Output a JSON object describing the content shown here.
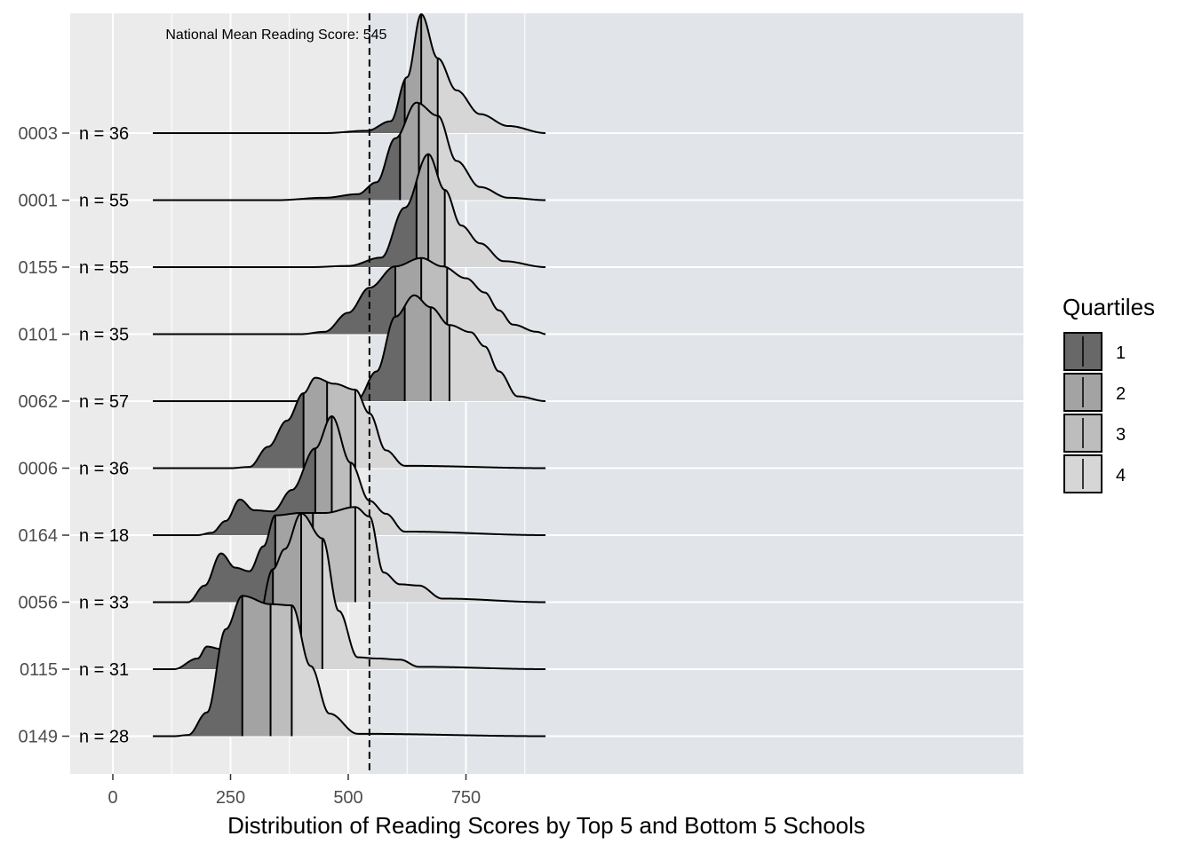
{
  "chart_data": {
    "type": "ridgeline",
    "xlabel": "Distribution of Reading Scores by Top 5 and Bottom 5 Schools",
    "xlim": [
      -90,
      970
    ],
    "x_ticks": [
      0,
      250,
      500,
      750
    ],
    "x_tick_labels": [
      "0",
      "250",
      "500",
      "750"
    ],
    "annotation": "National Mean Reading Score: 545",
    "reference_line": 545,
    "above_mean_shading_color": "#e1e5e9",
    "panel_color": "#ebebeb",
    "legend": {
      "title": "Quartiles",
      "position": "right",
      "items": [
        {
          "label": "1",
          "color": "#686868"
        },
        {
          "label": "2",
          "color": "#a3a3a3"
        },
        {
          "label": "3",
          "color": "#bdbdbd"
        },
        {
          "label": "4",
          "color": "#d6d6d6"
        }
      ]
    },
    "schools": [
      {
        "name": "0003",
        "n_label": "n = 36",
        "q": [
          620,
          655,
          690
        ],
        "density": [
          [
            85,
            0
          ],
          [
            450,
            0
          ],
          [
            540,
            0.02
          ],
          [
            590,
            0.1
          ],
          [
            625,
            0.47
          ],
          [
            655,
            1.0
          ],
          [
            690,
            0.63
          ],
          [
            730,
            0.36
          ],
          [
            780,
            0.16
          ],
          [
            840,
            0.06
          ],
          [
            920,
            0
          ]
        ]
      },
      {
        "name": "0001",
        "n_label": "n = 55",
        "q": [
          610,
          650,
          690
        ],
        "density": [
          [
            85,
            0
          ],
          [
            350,
            0
          ],
          [
            450,
            0.02
          ],
          [
            520,
            0.05
          ],
          [
            560,
            0.15
          ],
          [
            600,
            0.52
          ],
          [
            645,
            0.82
          ],
          [
            690,
            0.71
          ],
          [
            730,
            0.33
          ],
          [
            780,
            0.11
          ],
          [
            840,
            0.02
          ],
          [
            920,
            0
          ]
        ]
      },
      {
        "name": "0155",
        "n_label": "n = 55",
        "q": [
          645,
          670,
          705
        ],
        "density": [
          [
            85,
            0
          ],
          [
            420,
            0
          ],
          [
            500,
            0.01
          ],
          [
            570,
            0.08
          ],
          [
            620,
            0.5
          ],
          [
            670,
            0.95
          ],
          [
            705,
            0.65
          ],
          [
            740,
            0.35
          ],
          [
            780,
            0.2
          ],
          [
            830,
            0.05
          ],
          [
            920,
            0
          ]
        ]
      },
      {
        "name": "0101",
        "n_label": "n = 35",
        "q": [
          600,
          655,
          710
        ],
        "density": [
          [
            85,
            0
          ],
          [
            400,
            0
          ],
          [
            450,
            0.02
          ],
          [
            500,
            0.18
          ],
          [
            545,
            0.39
          ],
          [
            600,
            0.57
          ],
          [
            655,
            0.64
          ],
          [
            700,
            0.57
          ],
          [
            750,
            0.47
          ],
          [
            790,
            0.35
          ],
          [
            820,
            0.2
          ],
          [
            850,
            0.08
          ],
          [
            900,
            0.02
          ],
          [
            920,
            0
          ]
        ]
      },
      {
        "name": "0062",
        "n_label": "n = 57",
        "q": [
          620,
          675,
          715
        ],
        "density": [
          [
            85,
            0
          ],
          [
            480,
            0
          ],
          [
            520,
            0.02
          ],
          [
            560,
            0.25
          ],
          [
            600,
            0.71
          ],
          [
            640,
            0.89
          ],
          [
            675,
            0.79
          ],
          [
            715,
            0.64
          ],
          [
            760,
            0.58
          ],
          [
            790,
            0.46
          ],
          [
            820,
            0.25
          ],
          [
            860,
            0.04
          ],
          [
            920,
            0
          ]
        ]
      },
      {
        "name": "0006",
        "n_label": "n = 36",
        "q": [
          405,
          455,
          515
        ],
        "density": [
          [
            85,
            0
          ],
          [
            250,
            0
          ],
          [
            290,
            0.01
          ],
          [
            330,
            0.18
          ],
          [
            370,
            0.4
          ],
          [
            405,
            0.63
          ],
          [
            430,
            0.76
          ],
          [
            470,
            0.71
          ],
          [
            515,
            0.66
          ],
          [
            545,
            0.46
          ],
          [
            580,
            0.15
          ],
          [
            620,
            0.02
          ],
          [
            920,
            0
          ]
        ]
      },
      {
        "name": "0164",
        "n_label": "n = 18",
        "q": [
          430,
          465,
          505
        ],
        "density": [
          [
            85,
            0
          ],
          [
            180,
            0
          ],
          [
            210,
            0.02
          ],
          [
            240,
            0.12
          ],
          [
            270,
            0.3
          ],
          [
            300,
            0.21
          ],
          [
            340,
            0.2
          ],
          [
            380,
            0.38
          ],
          [
            430,
            0.73
          ],
          [
            465,
            1.0
          ],
          [
            505,
            0.61
          ],
          [
            545,
            0.29
          ],
          [
            580,
            0.18
          ],
          [
            620,
            0.03
          ],
          [
            920,
            0
          ]
        ]
      },
      {
        "name": "0056",
        "n_label": "n = 33",
        "q": [
          345,
          425,
          515
        ],
        "density": [
          [
            85,
            0
          ],
          [
            160,
            0
          ],
          [
            195,
            0.14
          ],
          [
            230,
            0.41
          ],
          [
            260,
            0.29
          ],
          [
            290,
            0.26
          ],
          [
            320,
            0.47
          ],
          [
            345,
            0.73
          ],
          [
            400,
            0.75
          ],
          [
            450,
            0.75
          ],
          [
            515,
            0.8
          ],
          [
            545,
            0.72
          ],
          [
            575,
            0.25
          ],
          [
            610,
            0.15
          ],
          [
            650,
            0.14
          ],
          [
            700,
            0.03
          ],
          [
            920,
            0
          ]
        ]
      },
      {
        "name": "0115",
        "n_label": "n = 31",
        "q": [
          340,
          400,
          445
        ],
        "density": [
          [
            85,
            0
          ],
          [
            130,
            0
          ],
          [
            180,
            0.09
          ],
          [
            200,
            0.19
          ],
          [
            230,
            0.17
          ],
          [
            270,
            0.11
          ],
          [
            300,
            0.24
          ],
          [
            340,
            0.84
          ],
          [
            365,
            1.01
          ],
          [
            400,
            1.31
          ],
          [
            445,
            1.1
          ],
          [
            480,
            0.49
          ],
          [
            520,
            0.1
          ],
          [
            560,
            0.09
          ],
          [
            610,
            0.08
          ],
          [
            650,
            0.02
          ],
          [
            920,
            0
          ]
        ]
      },
      {
        "name": "0149",
        "n_label": "n = 28",
        "q": [
          275,
          335,
          380
        ],
        "density": [
          [
            85,
            0
          ],
          [
            130,
            0
          ],
          [
            160,
            0.01
          ],
          [
            200,
            0.2
          ],
          [
            240,
            0.9
          ],
          [
            275,
            1.18
          ],
          [
            335,
            1.11
          ],
          [
            380,
            1.1
          ],
          [
            420,
            0.59
          ],
          [
            460,
            0.19
          ],
          [
            520,
            0.02
          ],
          [
            920,
            0
          ]
        ]
      }
    ]
  }
}
